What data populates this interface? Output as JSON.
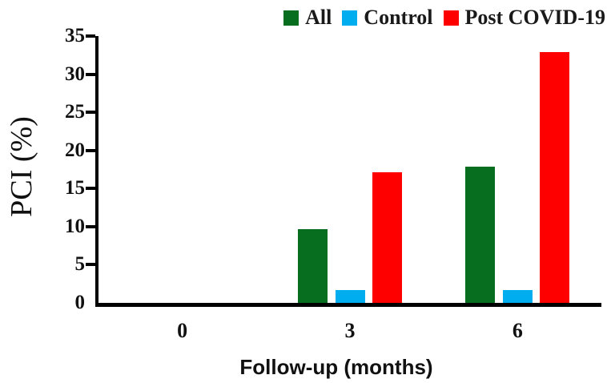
{
  "chart_data": {
    "type": "bar",
    "title": "",
    "categories": [
      "0",
      "3",
      "6"
    ],
    "series": [
      {
        "name": "All",
        "color": "#066e1e",
        "values": [
          0,
          9.7,
          17.9
        ]
      },
      {
        "name": "Control",
        "color": "#00aeef",
        "values": [
          0,
          1.7,
          1.7
        ]
      },
      {
        "name": "Post COVID-19",
        "color": "#fe0000",
        "values": [
          0,
          17.1,
          32.9
        ]
      }
    ],
    "xlabel": "Follow-up (months)",
    "ylabel": "PCI (%)",
    "ylim": [
      0,
      35
    ],
    "yticks": [
      0,
      5,
      10,
      15,
      20,
      25,
      30,
      35
    ],
    "legend_position": "top-right",
    "grid": false,
    "axis_color": "#000000",
    "background_color": "#ffffff"
  }
}
